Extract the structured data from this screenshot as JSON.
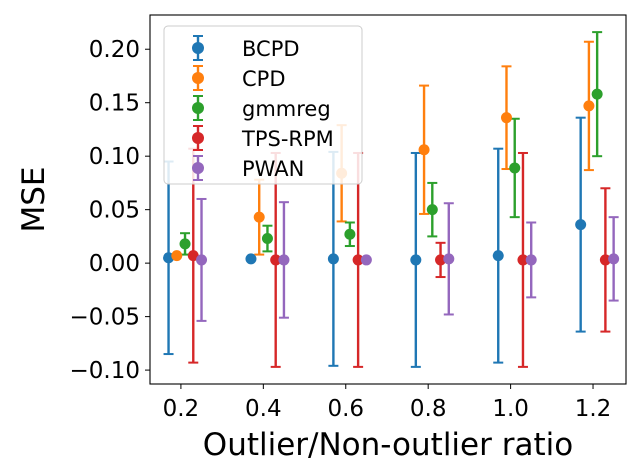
{
  "chart_data": {
    "type": "scatter",
    "subtype": "errorbar",
    "title": "",
    "xlabel": "Outlier/Non-outlier ratio",
    "ylabel": "MSE",
    "xlim": [
      0.125,
      1.28
    ],
    "ylim": [
      -0.113,
      0.232
    ],
    "xticks": [
      0.2,
      0.4,
      0.6,
      0.8,
      1.0,
      1.2
    ],
    "xtick_labels": [
      "0.2",
      "0.4",
      "0.6",
      "0.8",
      "1.0",
      "1.2"
    ],
    "yticks": [
      -0.1,
      -0.05,
      0.0,
      0.05,
      0.1,
      0.15,
      0.2
    ],
    "ytick_labels": [
      "−0.10",
      "−0.05",
      "0.00",
      "0.05",
      "0.10",
      "0.15",
      "0.20"
    ],
    "legend_position": "top-left",
    "series": [
      {
        "name": "BCPD",
        "color": "#1f77b4",
        "points": [
          {
            "x": 0.17,
            "y": 0.005,
            "err": 0.09
          },
          {
            "x": 0.37,
            "y": 0.004,
            "err": 0.0
          },
          {
            "x": 0.57,
            "y": 0.004,
            "err": 0.1
          },
          {
            "x": 0.77,
            "y": 0.003,
            "err": 0.1
          },
          {
            "x": 0.97,
            "y": 0.007,
            "err": 0.1
          },
          {
            "x": 1.17,
            "y": 0.036,
            "err": 0.1
          }
        ]
      },
      {
        "name": "CPD",
        "color": "#ff7f0e",
        "points": [
          {
            "x": 0.19,
            "y": 0.007,
            "err": 0.0
          },
          {
            "x": 0.39,
            "y": 0.043,
            "err": 0.035
          },
          {
            "x": 0.59,
            "y": 0.084,
            "err": 0.045
          },
          {
            "x": 0.79,
            "y": 0.106,
            "err": 0.06
          },
          {
            "x": 0.99,
            "y": 0.136,
            "err": 0.048
          },
          {
            "x": 1.19,
            "y": 0.147,
            "err": 0.06
          }
        ]
      },
      {
        "name": "gmmreg",
        "color": "#2ca02c",
        "points": [
          {
            "x": 0.21,
            "y": 0.018,
            "err": 0.01
          },
          {
            "x": 0.41,
            "y": 0.023,
            "err": 0.012
          },
          {
            "x": 0.61,
            "y": 0.027,
            "err": 0.011
          },
          {
            "x": 0.81,
            "y": 0.05,
            "err": 0.025
          },
          {
            "x": 1.01,
            "y": 0.089,
            "err": 0.046
          },
          {
            "x": 1.21,
            "y": 0.158,
            "err": 0.058
          }
        ]
      },
      {
        "name": "TPS-RPM",
        "color": "#d62728",
        "points": [
          {
            "x": 0.23,
            "y": 0.007,
            "err": 0.1
          },
          {
            "x": 0.43,
            "y": 0.003,
            "err": 0.1
          },
          {
            "x": 0.63,
            "y": 0.003,
            "err": 0.1
          },
          {
            "x": 0.83,
            "y": 0.003,
            "err": 0.016
          },
          {
            "x": 1.03,
            "y": 0.003,
            "err": 0.1
          },
          {
            "x": 1.23,
            "y": 0.003,
            "err": 0.067
          }
        ]
      },
      {
        "name": "PWAN",
        "color": "#9467bd",
        "points": [
          {
            "x": 0.25,
            "y": 0.003,
            "err": 0.057
          },
          {
            "x": 0.45,
            "y": 0.003,
            "err": 0.054
          },
          {
            "x": 0.65,
            "y": 0.003,
            "err": 0.0
          },
          {
            "x": 0.85,
            "y": 0.004,
            "err": 0.052
          },
          {
            "x": 1.05,
            "y": 0.003,
            "err": 0.035
          },
          {
            "x": 1.25,
            "y": 0.004,
            "err": 0.039
          }
        ]
      }
    ]
  }
}
